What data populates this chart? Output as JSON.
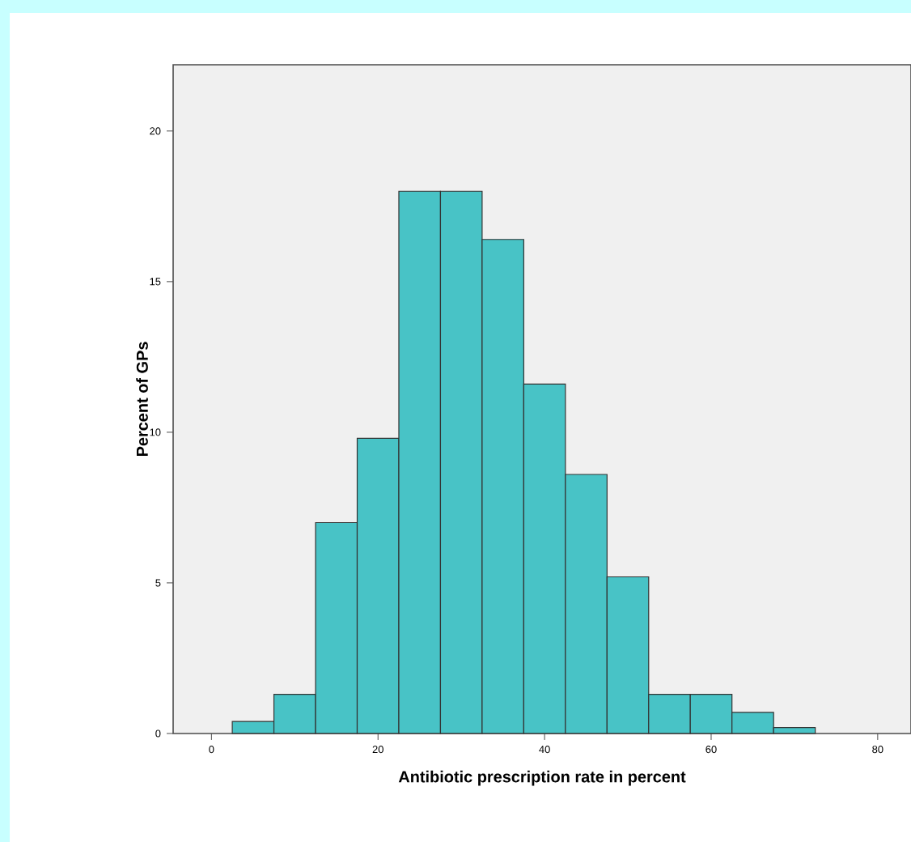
{
  "chart_data": {
    "type": "histogram",
    "xlabel": "Antibiotic prescription rate in percent",
    "ylabel": "Percent of GPs",
    "bins": [
      2.5,
      7.5,
      12.5,
      17.5,
      22.5,
      27.5,
      32.5,
      37.5,
      42.5,
      47.5,
      52.5,
      57.5,
      62.5,
      67.5,
      72.5
    ],
    "values": [
      0.4,
      1.3,
      7.0,
      9.8,
      18.0,
      18.0,
      16.4,
      11.6,
      8.6,
      5.2,
      1.3,
      1.3,
      0.7,
      0.2
    ],
    "color": "#48c3c6",
    "xlim": [
      -4.6,
      84
    ],
    "ylim": [
      0,
      22.2
    ],
    "xticks": [
      0,
      20,
      40,
      60,
      80
    ],
    "yticks": [
      0,
      5,
      10,
      15,
      20
    ]
  }
}
